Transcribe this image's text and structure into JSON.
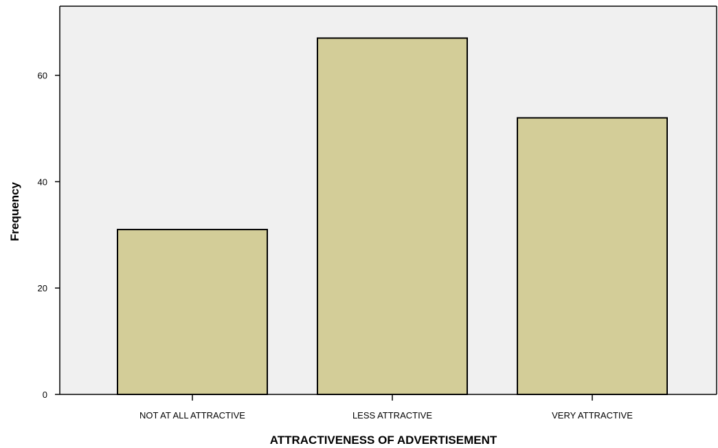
{
  "chart_data": {
    "type": "bar",
    "categories": [
      "NOT AT ALL ATTRACTIVE",
      "LESS ATTRACTIVE",
      "VERY ATTRACTIVE"
    ],
    "values": [
      31,
      67,
      52
    ],
    "title": "",
    "xlabel": "ATTRACTIVENESS OF ADVERTISEMENT",
    "ylabel": "Frequency",
    "ylim": [
      0,
      73
    ],
    "yticks": [
      0,
      20,
      40,
      60
    ],
    "grid": false,
    "legend": "none",
    "colors": {
      "bar_fill": "#d3cd98",
      "plot_background": "#f0f0f0",
      "bar_outline": "#000000"
    }
  }
}
